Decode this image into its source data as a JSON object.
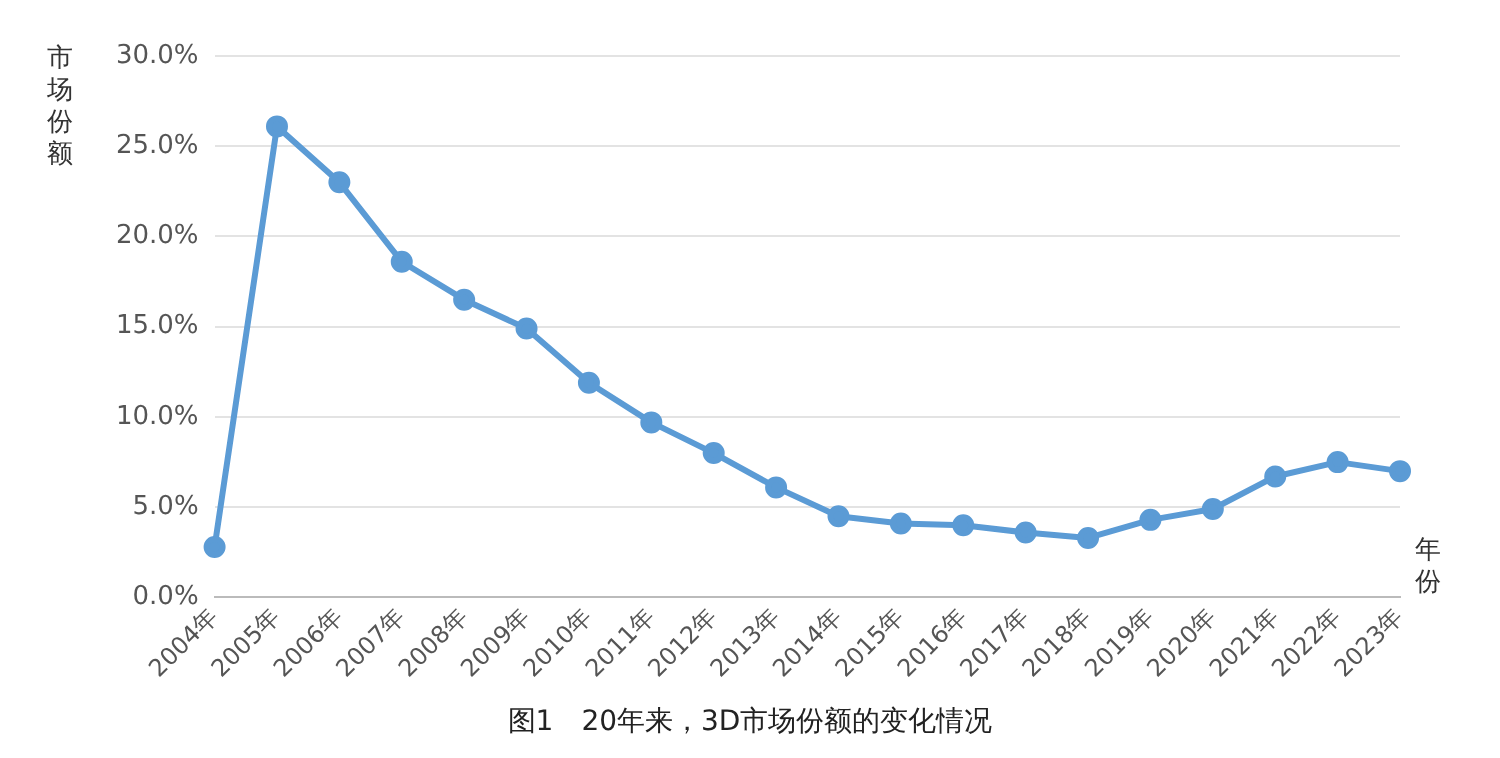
{
  "chart_data": {
    "type": "line",
    "ylabel": "市场份额",
    "xlabel": "年份",
    "categories": [
      "2004年",
      "2005年",
      "2006年",
      "2007年",
      "2008年",
      "2009年",
      "2010年",
      "2011年",
      "2012年",
      "2013年",
      "2014年",
      "2015年",
      "2016年",
      "2017年",
      "2018年",
      "2019年",
      "2020年",
      "2021年",
      "2022年",
      "2023年"
    ],
    "series": [
      {
        "color": "#5b9bd5",
        "values": [
          2.8,
          26.1,
          23.0,
          18.6,
          16.5,
          14.9,
          11.9,
          9.7,
          8.0,
          6.1,
          4.5,
          4.1,
          4.0,
          3.6,
          3.3,
          4.3,
          4.9,
          6.7,
          7.5,
          7.0
        ]
      }
    ],
    "ylim": [
      0,
      30
    ],
    "yticks": [
      {
        "value": 0,
        "label": "0.0%"
      },
      {
        "value": 5,
        "label": "5.0%"
      },
      {
        "value": 10,
        "label": "10.0%"
      },
      {
        "value": 15,
        "label": "15.0%"
      },
      {
        "value": 20,
        "label": "20.0%"
      },
      {
        "value": 25,
        "label": "25.0%"
      },
      {
        "value": 30,
        "label": "30.0%"
      }
    ],
    "grid": "y",
    "legend": false,
    "marker": "circle",
    "line_style": "solid",
    "annotations": [
      "图1　20年来，3D市场份额的变化情况"
    ]
  }
}
